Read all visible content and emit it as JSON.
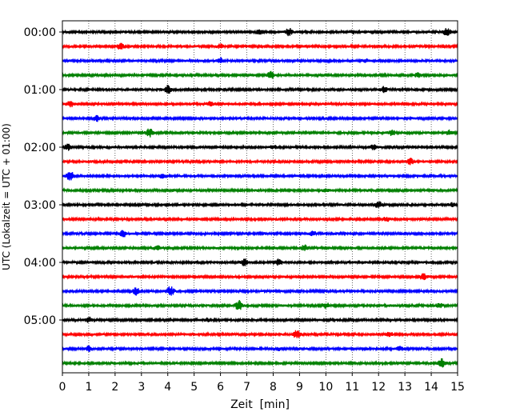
{
  "chart_data": {
    "type": "line",
    "title": "",
    "xlabel": "Zeit  [min]",
    "ylabel": "UTC (Lokalzeit = UTC + 01:00)",
    "xlim": [
      0,
      15
    ],
    "x_ticks": [
      "0",
      "1",
      "2",
      "3",
      "4",
      "5",
      "6",
      "7",
      "8",
      "9",
      "10",
      "11",
      "12",
      "13",
      "14",
      "15"
    ],
    "y_ticks": [
      "00:00",
      "01:00",
      "02:00",
      "03:00",
      "04:00",
      "05:00"
    ],
    "grid": "vertical dotted",
    "trace_interval_min": 15,
    "color_cycle": [
      "#000000",
      "#ff0000",
      "#0000ff",
      "#008000"
    ],
    "traces": [
      {
        "start": "00:00",
        "color": "#000000",
        "events": [
          {
            "t": 7.5,
            "a": 0.5
          },
          {
            "t": 8.6,
            "a": 0.7
          },
          {
            "t": 14.6,
            "a": 0.8
          }
        ]
      },
      {
        "start": "00:15",
        "color": "#ff0000",
        "events": [
          {
            "t": 2.2,
            "a": 0.6
          },
          {
            "t": 6.0,
            "a": 0.4
          }
        ]
      },
      {
        "start": "00:30",
        "color": "#0000ff",
        "events": [
          {
            "t": 6.0,
            "a": 0.5
          },
          {
            "t": 11.5,
            "a": 0.3
          }
        ]
      },
      {
        "start": "00:45",
        "color": "#008000",
        "events": [
          {
            "t": 7.9,
            "a": 0.8
          },
          {
            "t": 13.5,
            "a": 0.4
          }
        ]
      },
      {
        "start": "01:00",
        "color": "#000000",
        "events": [
          {
            "t": 4.0,
            "a": 0.8
          },
          {
            "t": 12.2,
            "a": 0.5
          }
        ]
      },
      {
        "start": "01:15",
        "color": "#ff0000",
        "events": [
          {
            "t": 0.3,
            "a": 0.5
          },
          {
            "t": 5.6,
            "a": 0.4
          }
        ]
      },
      {
        "start": "01:30",
        "color": "#0000ff",
        "events": [
          {
            "t": 1.3,
            "a": 0.6
          }
        ]
      },
      {
        "start": "01:45",
        "color": "#008000",
        "events": [
          {
            "t": 3.3,
            "a": 0.9
          },
          {
            "t": 12.5,
            "a": 0.5
          },
          {
            "t": 14.7,
            "a": 0.4
          }
        ]
      },
      {
        "start": "02:00",
        "color": "#000000",
        "events": [
          {
            "t": 0.2,
            "a": 0.6
          },
          {
            "t": 8.0,
            "a": 0.3
          },
          {
            "t": 11.8,
            "a": 0.4
          }
        ]
      },
      {
        "start": "02:15",
        "color": "#ff0000",
        "events": [
          {
            "t": 13.2,
            "a": 0.6
          }
        ]
      },
      {
        "start": "02:30",
        "color": "#0000ff",
        "events": [
          {
            "t": 0.3,
            "a": 1.0
          },
          {
            "t": 3.8,
            "a": 0.4
          }
        ]
      },
      {
        "start": "02:45",
        "color": "#008000",
        "events": [
          {
            "t": 10.0,
            "a": 0.3
          }
        ]
      },
      {
        "start": "03:00",
        "color": "#000000",
        "events": [
          {
            "t": 12.0,
            "a": 0.6
          },
          {
            "t": 14.8,
            "a": 0.4
          }
        ]
      },
      {
        "start": "03:15",
        "color": "#ff0000",
        "events": [
          {
            "t": 12.3,
            "a": 0.4
          }
        ]
      },
      {
        "start": "03:30",
        "color": "#0000ff",
        "events": [
          {
            "t": 2.3,
            "a": 0.6
          },
          {
            "t": 9.5,
            "a": 0.4
          }
        ]
      },
      {
        "start": "03:45",
        "color": "#008000",
        "events": [
          {
            "t": 3.6,
            "a": 0.4
          },
          {
            "t": 9.2,
            "a": 0.5
          }
        ]
      },
      {
        "start": "04:00",
        "color": "#000000",
        "events": [
          {
            "t": 6.9,
            "a": 0.7
          },
          {
            "t": 8.2,
            "a": 0.6
          }
        ]
      },
      {
        "start": "04:15",
        "color": "#ff0000",
        "events": [
          {
            "t": 13.7,
            "a": 0.6
          }
        ]
      },
      {
        "start": "04:30",
        "color": "#0000ff",
        "events": [
          {
            "t": 2.8,
            "a": 0.7
          },
          {
            "t": 4.1,
            "a": 1.0
          }
        ]
      },
      {
        "start": "04:45",
        "color": "#008000",
        "events": [
          {
            "t": 6.7,
            "a": 1.0
          },
          {
            "t": 10.0,
            "a": 0.5
          },
          {
            "t": 14.3,
            "a": 0.4
          }
        ]
      },
      {
        "start": "05:00",
        "color": "#000000",
        "events": [
          {
            "t": 1.0,
            "a": 0.5
          },
          {
            "t": 5.5,
            "a": 0.3
          }
        ]
      },
      {
        "start": "05:15",
        "color": "#ff0000",
        "events": [
          {
            "t": 8.9,
            "a": 0.8
          },
          {
            "t": 12.4,
            "a": 0.5
          }
        ]
      },
      {
        "start": "05:30",
        "color": "#0000ff",
        "events": [
          {
            "t": 1.0,
            "a": 0.5
          },
          {
            "t": 8.2,
            "a": 0.3
          },
          {
            "t": 12.8,
            "a": 0.4
          }
        ]
      },
      {
        "start": "05:45",
        "color": "#008000",
        "events": [
          {
            "t": 14.4,
            "a": 0.8
          }
        ]
      }
    ]
  }
}
